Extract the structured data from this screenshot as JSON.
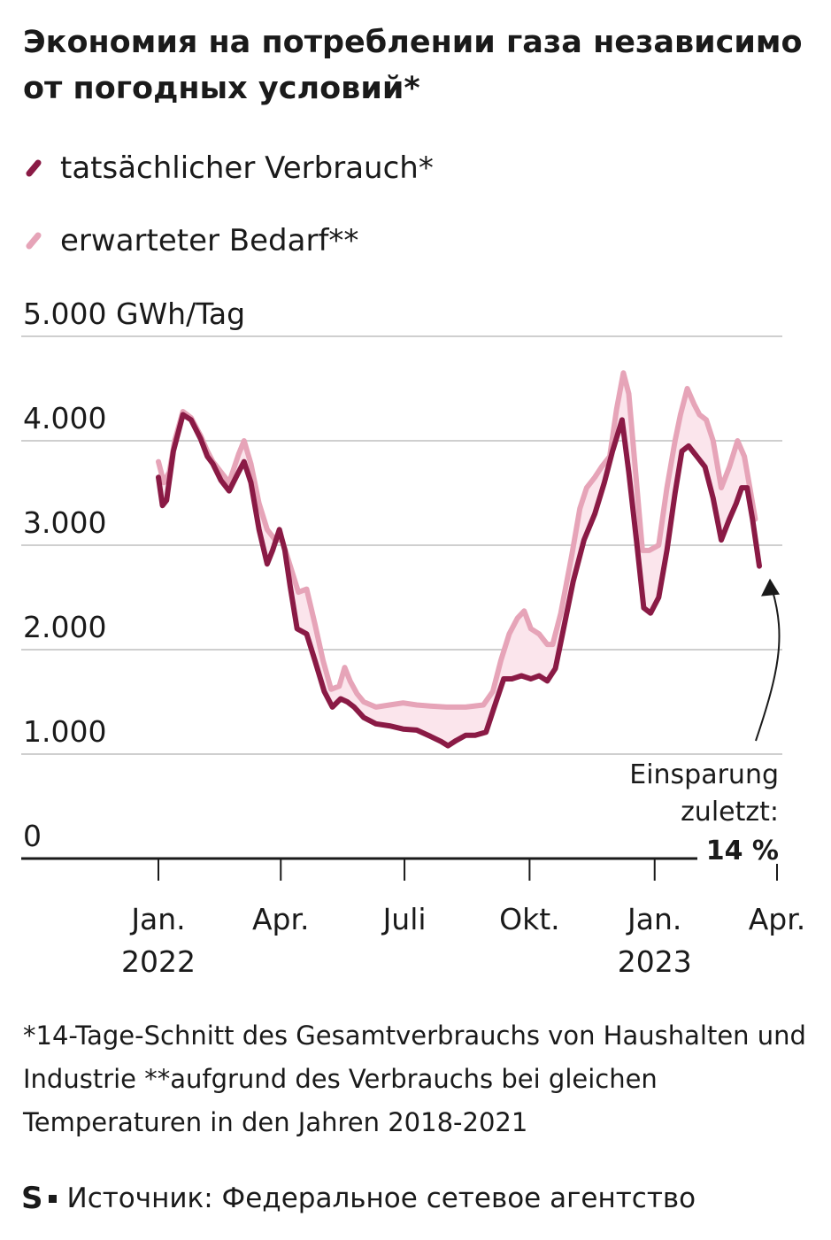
{
  "title": "Экономия на потреблении газа независимо от погодных условий*",
  "legend": {
    "actual_label": "tatsächlicher Verbrauch*",
    "expected_label": "erwarteter Bedarf**"
  },
  "colors": {
    "actual": "#8a1a45",
    "expected": "#e6a4b8",
    "fill": "#fbe5ec",
    "grid": "#cfcfcf",
    "axis": "#1a1a1a"
  },
  "annotation": {
    "line1": "Einsparung",
    "line2": "zuletzt:",
    "value": "14 %"
  },
  "footnote": "*14-Tage-Schnitt des Gesamtverbrauchs von Haushalten und Industrie **aufgrund des Verbrauchs bei gleichen Temperaturen in den Jahren 2018-2021",
  "source": {
    "logo": "S",
    "text": "Источник: Федеральное сетевое агентство"
  },
  "chart_data": {
    "type": "line",
    "unit_label": "5.000 GWh/Tag",
    "ylim": [
      0,
      5000
    ],
    "y_ticks": [
      {
        "value": 0,
        "label": "0"
      },
      {
        "value": 1000,
        "label": "1.000"
      },
      {
        "value": 2000,
        "label": "2.000"
      },
      {
        "value": 3000,
        "label": "3.000"
      },
      {
        "value": 4000,
        "label": "4.000"
      },
      {
        "value": 5000,
        "label": "5.000 GWh/Tag"
      }
    ],
    "x_ticks": [
      {
        "date": "2022-01-01",
        "line1": "Jan.",
        "line2": "2022"
      },
      {
        "date": "2022-04-01",
        "line1": "Apr.",
        "line2": ""
      },
      {
        "date": "2022-07-01",
        "line1": "Juli",
        "line2": ""
      },
      {
        "date": "2022-10-01",
        "line1": "Okt.",
        "line2": ""
      },
      {
        "date": "2023-01-01",
        "line1": "Jan.",
        "line2": "2023"
      },
      {
        "date": "2023-04-01",
        "line1": "Apr.",
        "line2": ""
      }
    ],
    "series": [
      {
        "name": "tatsächlicher Verbrauch*",
        "points": [
          [
            "2022-01-01",
            3650
          ],
          [
            "2022-01-04",
            3380
          ],
          [
            "2022-01-07",
            3430
          ],
          [
            "2022-01-12",
            3900
          ],
          [
            "2022-01-19",
            4250
          ],
          [
            "2022-01-25",
            4200
          ],
          [
            "2022-02-01",
            4020
          ],
          [
            "2022-02-06",
            3850
          ],
          [
            "2022-02-10",
            3780
          ],
          [
            "2022-02-16",
            3620
          ],
          [
            "2022-02-22",
            3520
          ],
          [
            "2022-03-01",
            3700
          ],
          [
            "2022-03-05",
            3800
          ],
          [
            "2022-03-10",
            3600
          ],
          [
            "2022-03-16",
            3150
          ],
          [
            "2022-03-22",
            2820
          ],
          [
            "2022-03-26",
            2950
          ],
          [
            "2022-03-31",
            3150
          ],
          [
            "2022-04-04",
            2950
          ],
          [
            "2022-04-08",
            2600
          ],
          [
            "2022-04-13",
            2200
          ],
          [
            "2022-04-20",
            2150
          ],
          [
            "2022-04-26",
            1900
          ],
          [
            "2022-05-03",
            1600
          ],
          [
            "2022-05-09",
            1450
          ],
          [
            "2022-05-15",
            1530
          ],
          [
            "2022-05-20",
            1500
          ],
          [
            "2022-05-25",
            1450
          ],
          [
            "2022-06-01",
            1350
          ],
          [
            "2022-06-10",
            1290
          ],
          [
            "2022-06-20",
            1270
          ],
          [
            "2022-06-30",
            1240
          ],
          [
            "2022-07-10",
            1230
          ],
          [
            "2022-07-20",
            1170
          ],
          [
            "2022-07-28",
            1120
          ],
          [
            "2022-08-02",
            1080
          ],
          [
            "2022-08-08",
            1130
          ],
          [
            "2022-08-15",
            1180
          ],
          [
            "2022-08-22",
            1180
          ],
          [
            "2022-08-30",
            1210
          ],
          [
            "2022-09-05",
            1450
          ],
          [
            "2022-09-12",
            1720
          ],
          [
            "2022-09-18",
            1720
          ],
          [
            "2022-09-25",
            1750
          ],
          [
            "2022-10-02",
            1720
          ],
          [
            "2022-10-08",
            1750
          ],
          [
            "2022-10-14",
            1700
          ],
          [
            "2022-10-20",
            1820
          ],
          [
            "2022-10-26",
            2200
          ],
          [
            "2022-11-02",
            2650
          ],
          [
            "2022-11-10",
            3050
          ],
          [
            "2022-11-18",
            3300
          ],
          [
            "2022-11-25",
            3600
          ],
          [
            "2022-12-01",
            3900
          ],
          [
            "2022-12-08",
            4200
          ],
          [
            "2022-12-13",
            3700
          ],
          [
            "2022-12-19",
            3000
          ],
          [
            "2022-12-24",
            2400
          ],
          [
            "2022-12-29",
            2350
          ],
          [
            "2023-01-04",
            2500
          ],
          [
            "2023-01-10",
            2950
          ],
          [
            "2023-01-16",
            3500
          ],
          [
            "2023-01-21",
            3900
          ],
          [
            "2023-01-26",
            3950
          ],
          [
            "2023-02-01",
            3850
          ],
          [
            "2023-02-07",
            3750
          ],
          [
            "2023-02-13",
            3450
          ],
          [
            "2023-02-19",
            3050
          ],
          [
            "2023-02-25",
            3250
          ],
          [
            "2023-03-02",
            3400
          ],
          [
            "2023-03-06",
            3550
          ],
          [
            "2023-03-10",
            3550
          ],
          [
            "2023-03-14",
            3250
          ],
          [
            "2023-03-19",
            2800
          ]
        ]
      },
      {
        "name": "erwarteter Bedarf**",
        "points": [
          [
            "2022-01-01",
            3800
          ],
          [
            "2022-01-05",
            3600
          ],
          [
            "2022-01-09",
            3700
          ],
          [
            "2022-01-13",
            4000
          ],
          [
            "2022-01-19",
            4280
          ],
          [
            "2022-01-25",
            4220
          ],
          [
            "2022-02-01",
            4050
          ],
          [
            "2022-02-06",
            3900
          ],
          [
            "2022-02-10",
            3800
          ],
          [
            "2022-02-16",
            3700
          ],
          [
            "2022-02-22",
            3600
          ],
          [
            "2022-03-01",
            3870
          ],
          [
            "2022-03-05",
            4000
          ],
          [
            "2022-03-10",
            3780
          ],
          [
            "2022-03-16",
            3400
          ],
          [
            "2022-03-22",
            3150
          ],
          [
            "2022-03-28",
            3050
          ],
          [
            "2022-04-02",
            3050
          ],
          [
            "2022-04-08",
            2800
          ],
          [
            "2022-04-14",
            2550
          ],
          [
            "2022-04-20",
            2580
          ],
          [
            "2022-04-26",
            2250
          ],
          [
            "2022-05-02",
            1900
          ],
          [
            "2022-05-08",
            1620
          ],
          [
            "2022-05-14",
            1650
          ],
          [
            "2022-05-18",
            1830
          ],
          [
            "2022-05-22",
            1700
          ],
          [
            "2022-05-27",
            1580
          ],
          [
            "2022-06-01",
            1500
          ],
          [
            "2022-06-10",
            1450
          ],
          [
            "2022-06-20",
            1470
          ],
          [
            "2022-06-30",
            1490
          ],
          [
            "2022-07-10",
            1470
          ],
          [
            "2022-07-20",
            1460
          ],
          [
            "2022-08-01",
            1450
          ],
          [
            "2022-08-15",
            1450
          ],
          [
            "2022-08-28",
            1470
          ],
          [
            "2022-09-04",
            1600
          ],
          [
            "2022-09-10",
            1900
          ],
          [
            "2022-09-16",
            2150
          ],
          [
            "2022-09-22",
            2300
          ],
          [
            "2022-09-27",
            2370
          ],
          [
            "2022-10-02",
            2200
          ],
          [
            "2022-10-08",
            2150
          ],
          [
            "2022-10-14",
            2050
          ],
          [
            "2022-10-18",
            2050
          ],
          [
            "2022-10-24",
            2350
          ],
          [
            "2022-11-01",
            2900
          ],
          [
            "2022-11-07",
            3350
          ],
          [
            "2022-11-12",
            3550
          ],
          [
            "2022-11-18",
            3650
          ],
          [
            "2022-11-23",
            3750
          ],
          [
            "2022-11-29",
            3850
          ],
          [
            "2022-12-04",
            4300
          ],
          [
            "2022-12-09",
            4650
          ],
          [
            "2022-12-13",
            4450
          ],
          [
            "2022-12-18",
            3700
          ],
          [
            "2022-12-23",
            2950
          ],
          [
            "2022-12-28",
            2950
          ],
          [
            "2023-01-04",
            3000
          ],
          [
            "2023-01-10",
            3550
          ],
          [
            "2023-01-16",
            4000
          ],
          [
            "2023-01-20",
            4250
          ],
          [
            "2023-01-25",
            4500
          ],
          [
            "2023-01-30",
            4350
          ],
          [
            "2023-02-03",
            4250
          ],
          [
            "2023-02-08",
            4200
          ],
          [
            "2023-02-13",
            4000
          ],
          [
            "2023-02-19",
            3550
          ],
          [
            "2023-02-25",
            3750
          ],
          [
            "2023-03-03",
            4000
          ],
          [
            "2023-03-08",
            3850
          ],
          [
            "2023-03-12",
            3550
          ],
          [
            "2023-03-16",
            3250
          ]
        ]
      }
    ]
  }
}
